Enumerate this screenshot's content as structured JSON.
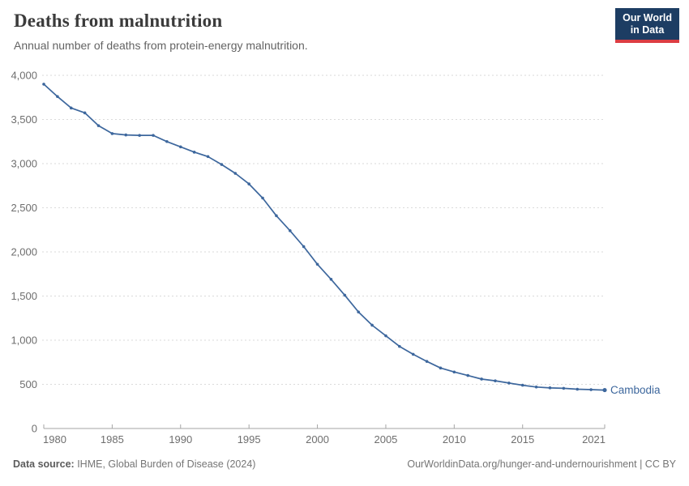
{
  "header": {
    "title": "Deaths from malnutrition",
    "subtitle": "Annual number of deaths from protein-energy malnutrition.",
    "logo": {
      "line1": "Our World",
      "line2": "in Data"
    }
  },
  "chart_data": {
    "type": "line",
    "title": "Deaths from malnutrition",
    "series_name": "Cambodia",
    "x": [
      1980,
      1981,
      1982,
      1983,
      1984,
      1985,
      1986,
      1987,
      1988,
      1989,
      1990,
      1991,
      1992,
      1993,
      1994,
      1995,
      1996,
      1997,
      1998,
      1999,
      2000,
      2001,
      2002,
      2003,
      2004,
      2005,
      2006,
      2007,
      2008,
      2009,
      2010,
      2011,
      2012,
      2013,
      2014,
      2015,
      2016,
      2017,
      2018,
      2019,
      2020,
      2021
    ],
    "values": [
      3900,
      3760,
      3630,
      3575,
      3430,
      3340,
      3325,
      3320,
      3320,
      3250,
      3190,
      3130,
      3080,
      2990,
      2890,
      2770,
      2610,
      2410,
      2240,
      2060,
      1860,
      1690,
      1510,
      1320,
      1170,
      1050,
      930,
      840,
      760,
      685,
      640,
      600,
      560,
      540,
      515,
      490,
      470,
      460,
      455,
      445,
      440,
      435
    ],
    "xlabel": "",
    "ylabel": "",
    "xlim": [
      1980,
      2021
    ],
    "ylim": [
      0,
      4000
    ],
    "x_ticks": [
      1980,
      1985,
      1990,
      1995,
      2000,
      2005,
      2010,
      2015,
      2021
    ],
    "y_ticks": [
      0,
      500,
      1000,
      1500,
      2000,
      2500,
      3000,
      3500,
      4000
    ],
    "grid": "horizontal-dashed",
    "legend_position": "end-of-line-label",
    "line_color": "#3d679d",
    "entity_label_color": "#3d679d",
    "grid_color": "#dadada",
    "axis_color": "#a5a5a5",
    "tick_label_color": "#6e6e6e"
  },
  "footer": {
    "source_label": "Data source:",
    "source_text": " IHME, Global Burden of Disease (2024)",
    "credit": "OurWorldinData.org/hunger-and-undernourishment | CC BY"
  }
}
